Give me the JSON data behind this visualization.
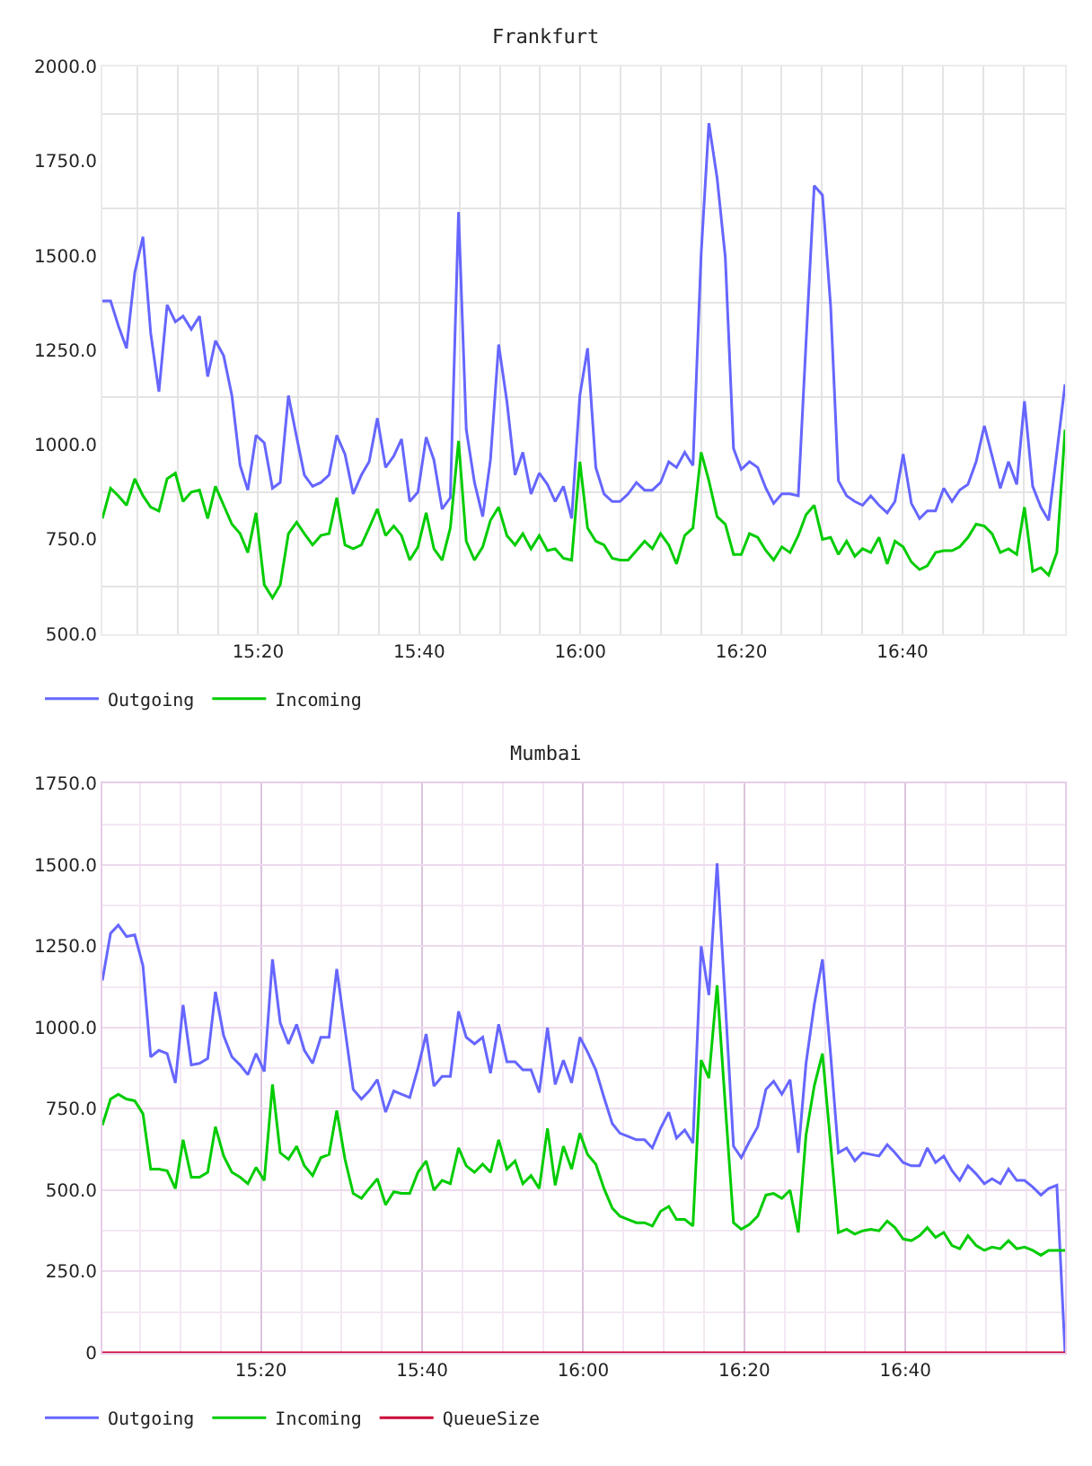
{
  "chart_data": [
    {
      "type": "line",
      "title": "Frankfurt",
      "grid": true,
      "legend": "bottom left",
      "x": [
        15.011,
        15.028,
        15.044,
        15.061,
        15.078,
        15.095,
        15.111,
        15.128,
        15.145,
        15.162,
        15.178,
        15.195,
        15.212,
        15.229,
        15.245,
        15.262,
        15.279,
        15.296,
        15.312,
        15.329,
        15.346,
        15.363,
        15.379,
        15.396,
        15.413,
        15.429,
        15.446,
        15.463,
        15.48,
        15.496,
        15.513,
        15.53,
        15.547,
        15.563,
        15.58,
        15.597,
        15.614,
        15.63,
        15.647,
        15.664,
        15.681,
        15.697,
        15.714,
        15.731,
        15.748,
        15.764,
        15.781,
        15.798,
        15.814,
        15.831,
        15.848,
        15.865,
        15.881,
        15.898,
        15.915,
        15.932,
        15.948,
        15.965,
        15.982,
        15.999,
        16.015,
        16.032,
        16.049,
        16.066,
        16.082,
        16.099,
        16.116,
        16.133,
        16.149,
        16.166,
        16.183,
        16.199,
        16.216,
        16.233,
        16.25,
        16.266,
        16.283,
        16.3,
        16.317,
        16.333,
        16.35,
        16.367,
        16.384,
        16.4,
        16.417,
        16.434,
        16.451,
        16.467,
        16.484,
        16.501,
        16.518,
        16.534,
        16.551,
        16.568,
        16.584,
        16.601,
        16.618,
        16.635,
        16.651,
        16.668,
        16.685,
        16.702,
        16.718,
        16.735,
        16.752,
        16.769,
        16.785,
        16.802,
        16.819,
        16.836,
        16.852,
        16.869,
        16.886,
        16.903,
        16.919,
        16.936,
        16.953,
        16.969,
        16.986,
        17.003
      ],
      "xlim": [
        15.011,
        17.003
      ],
      "xticks": [
        {
          "value": 15.0833,
          "label": null
        },
        {
          "value": 15.1667,
          "label": null
        },
        {
          "value": 15.25,
          "label": null
        },
        {
          "value": 15.3333,
          "label": "15:20"
        },
        {
          "value": 15.4167,
          "label": null
        },
        {
          "value": 15.5,
          "label": null
        },
        {
          "value": 15.5833,
          "label": null
        },
        {
          "value": 15.6667,
          "label": "15:40"
        },
        {
          "value": 15.75,
          "label": null
        },
        {
          "value": 15.8333,
          "label": null
        },
        {
          "value": 15.9167,
          "label": null
        },
        {
          "value": 16,
          "label": "16:00"
        },
        {
          "value": 16.0833,
          "label": null
        },
        {
          "value": 16.1667,
          "label": null
        },
        {
          "value": 16.25,
          "label": null
        },
        {
          "value": 16.3333,
          "label": "16:20"
        },
        {
          "value": 16.4167,
          "label": null
        },
        {
          "value": 16.5,
          "label": null
        },
        {
          "value": 16.5833,
          "label": null
        },
        {
          "value": 16.6667,
          "label": "16:40"
        },
        {
          "value": 16.75,
          "label": null
        },
        {
          "value": 16.8333,
          "label": null
        },
        {
          "value": 16.9167,
          "label": null
        }
      ],
      "ylim": [
        500,
        2000
      ],
      "yticks": [
        {
          "value": 500,
          "label": "500.0"
        },
        {
          "value": 625,
          "label": null
        },
        {
          "value": 750,
          "label": "750.0"
        },
        {
          "value": 875,
          "label": null
        },
        {
          "value": 1000,
          "label": "1000.0"
        },
        {
          "value": 1125,
          "label": null
        },
        {
          "value": 1250,
          "label": "1250.0"
        },
        {
          "value": 1375,
          "label": null
        },
        {
          "value": 1500,
          "label": "1500.0"
        },
        {
          "value": 1625,
          "label": null
        },
        {
          "value": 1750,
          "label": "1750.0"
        },
        {
          "value": 1875,
          "label": null
        },
        {
          "value": 2000,
          "label": "2000.0"
        }
      ],
      "series": [
        {
          "name": "Outgoing",
          "color": "#6666ff",
          "values": [
            1380,
            1380,
            1315,
            1255,
            1455,
            1550,
            1295,
            1140,
            1370,
            1325,
            1340,
            1305,
            1340,
            1180,
            1275,
            1235,
            1130,
            945,
            880,
            1025,
            1005,
            885,
            900,
            1130,
            1020,
            920,
            890,
            900,
            920,
            1025,
            975,
            870,
            920,
            955,
            1070,
            940,
            970,
            1015,
            850,
            875,
            1020,
            960,
            830,
            860,
            1615,
            1040,
            900,
            810,
            960,
            1265,
            1115,
            920,
            980,
            870,
            925,
            895,
            850,
            890,
            805,
            1130,
            1255,
            940,
            870,
            850,
            850,
            870,
            900,
            880,
            880,
            900,
            955,
            940,
            980,
            945,
            1505,
            1850,
            1705,
            1495,
            990,
            935,
            955,
            940,
            885,
            845,
            870,
            870,
            865,
            1270,
            1685,
            1660,
            1365,
            905,
            865,
            850,
            840,
            865,
            840,
            820,
            850,
            975,
            845,
            805,
            825,
            825,
            885,
            850,
            880,
            895,
            955,
            1050,
            970,
            885,
            955,
            895,
            1115,
            890,
            835,
            800,
            980,
            1160
          ]
        },
        {
          "name": "Incoming",
          "color": "#00cc00",
          "values": [
            805,
            885,
            865,
            840,
            910,
            865,
            835,
            825,
            910,
            925,
            850,
            875,
            880,
            805,
            890,
            840,
            790,
            765,
            715,
            820,
            630,
            595,
            630,
            765,
            795,
            765,
            735,
            760,
            765,
            860,
            735,
            725,
            735,
            780,
            830,
            760,
            785,
            760,
            695,
            730,
            820,
            725,
            695,
            780,
            1010,
            745,
            695,
            730,
            800,
            835,
            760,
            735,
            765,
            725,
            760,
            720,
            725,
            700,
            695,
            955,
            780,
            745,
            735,
            700,
            695,
            695,
            720,
            745,
            725,
            765,
            735,
            685,
            760,
            780,
            980,
            905,
            810,
            790,
            710,
            710,
            765,
            755,
            720,
            695,
            730,
            715,
            760,
            815,
            840,
            750,
            755,
            710,
            745,
            705,
            725,
            715,
            755,
            685,
            745,
            730,
            690,
            670,
            680,
            715,
            720,
            720,
            730,
            755,
            790,
            785,
            765,
            715,
            725,
            710,
            835,
            665,
            675,
            655,
            715,
            1040
          ]
        }
      ]
    },
    {
      "type": "line",
      "title": "Mumbai",
      "grid": true,
      "legend": "bottom left",
      "x": [
        15.005,
        15.022,
        15.038,
        15.055,
        15.072,
        15.089,
        15.105,
        15.122,
        15.139,
        15.156,
        15.172,
        15.189,
        15.206,
        15.223,
        15.239,
        15.256,
        15.273,
        15.29,
        15.306,
        15.323,
        15.34,
        15.357,
        15.373,
        15.39,
        15.407,
        15.423,
        15.44,
        15.457,
        15.474,
        15.49,
        15.507,
        15.524,
        15.541,
        15.557,
        15.574,
        15.591,
        15.608,
        15.624,
        15.641,
        15.658,
        15.675,
        15.691,
        15.708,
        15.725,
        15.742,
        15.758,
        15.775,
        15.792,
        15.808,
        15.825,
        15.842,
        15.859,
        15.875,
        15.892,
        15.909,
        15.926,
        15.942,
        15.959,
        15.976,
        15.993,
        16.009,
        16.026,
        16.043,
        16.06,
        16.076,
        16.093,
        16.11,
        16.127,
        16.143,
        16.16,
        16.177,
        16.193,
        16.21,
        16.227,
        16.244,
        16.26,
        16.277,
        16.294,
        16.311,
        16.327,
        16.344,
        16.361,
        16.378,
        16.394,
        16.411,
        16.428,
        16.445,
        16.461,
        16.478,
        16.495,
        16.512,
        16.528,
        16.545,
        16.562,
        16.578,
        16.595,
        16.612,
        16.629,
        16.645,
        16.662,
        16.679,
        16.696,
        16.712,
        16.729,
        16.746,
        16.763,
        16.779,
        16.796,
        16.813,
        16.83,
        16.846,
        16.863,
        16.88,
        16.897,
        16.913,
        16.93,
        16.947,
        16.963,
        16.98,
        16.997
      ],
      "xlim": [
        15.005,
        16.997
      ],
      "xticks": [
        {
          "value": 15.0833,
          "label": null
        },
        {
          "value": 15.1667,
          "label": null
        },
        {
          "value": 15.25,
          "label": null
        },
        {
          "value": 15.3333,
          "label": "15:20"
        },
        {
          "value": 15.4167,
          "label": null
        },
        {
          "value": 15.5,
          "label": null
        },
        {
          "value": 15.5833,
          "label": null
        },
        {
          "value": 15.6667,
          "label": "15:40"
        },
        {
          "value": 15.75,
          "label": null
        },
        {
          "value": 15.8333,
          "label": null
        },
        {
          "value": 15.9167,
          "label": null
        },
        {
          "value": 16,
          "label": "16:00"
        },
        {
          "value": 16.0833,
          "label": null
        },
        {
          "value": 16.1667,
          "label": null
        },
        {
          "value": 16.25,
          "label": null
        },
        {
          "value": 16.3333,
          "label": "16:20"
        },
        {
          "value": 16.4167,
          "label": null
        },
        {
          "value": 16.5,
          "label": null
        },
        {
          "value": 16.5833,
          "label": null
        },
        {
          "value": 16.6667,
          "label": "16:40"
        },
        {
          "value": 16.75,
          "label": null
        },
        {
          "value": 16.8333,
          "label": null
        },
        {
          "value": 16.9167,
          "label": null
        }
      ],
      "ylim": [
        0,
        1750
      ],
      "yticks": [
        0,
        {
          "value": 125,
          "label": null
        },
        {
          "value": 250,
          "label": "250.0"
        },
        {
          "value": 375,
          "label": null
        },
        {
          "value": 500,
          "label": "500.0"
        },
        {
          "value": 625,
          "label": null
        },
        {
          "value": 750,
          "label": "750.0"
        },
        {
          "value": 875,
          "label": null
        },
        {
          "value": 1000,
          "label": "1000.0"
        },
        {
          "value": 1125,
          "label": null
        },
        {
          "value": 1250,
          "label": "1250.0"
        },
        {
          "value": 1375,
          "label": null
        },
        {
          "value": 1500,
          "label": "1500.0"
        },
        {
          "value": 1625,
          "label": null
        },
        {
          "value": 1750,
          "label": "1750.0"
        }
      ],
      "series": [
        {
          "name": "Outgoing",
          "color": "#6666ff",
          "values": [
            1145,
            1290,
            1315,
            1280,
            1285,
            1190,
            910,
            930,
            920,
            830,
            1070,
            885,
            890,
            905,
            1110,
            975,
            910,
            885,
            855,
            920,
            865,
            1210,
            1015,
            950,
            1010,
            930,
            890,
            970,
            970,
            1180,
            995,
            810,
            780,
            805,
            840,
            740,
            805,
            795,
            785,
            875,
            980,
            820,
            850,
            850,
            1050,
            970,
            950,
            970,
            860,
            1010,
            895,
            895,
            870,
            870,
            800,
            1000,
            825,
            900,
            830,
            970,
            925,
            870,
            785,
            705,
            675,
            665,
            655,
            655,
            630,
            690,
            740,
            660,
            685,
            645,
            1250,
            1100,
            1505,
            1075,
            635,
            600,
            650,
            695,
            810,
            835,
            795,
            840,
            615,
            890,
            1070,
            1210,
            915,
            615,
            630,
            590,
            615,
            610,
            605,
            640,
            615,
            585,
            575,
            575,
            630,
            585,
            605,
            560,
            530,
            575,
            550,
            520,
            535,
            520,
            565,
            530,
            530,
            510,
            485,
            505,
            515,
            0
          ]
        },
        {
          "name": "Incoming",
          "color": "#00cc00",
          "values": [
            700,
            780,
            795,
            780,
            775,
            735,
            565,
            565,
            560,
            505,
            655,
            540,
            540,
            555,
            695,
            605,
            555,
            540,
            520,
            570,
            530,
            825,
            615,
            595,
            635,
            575,
            545,
            600,
            610,
            745,
            595,
            490,
            475,
            505,
            535,
            455,
            495,
            490,
            490,
            555,
            590,
            500,
            530,
            520,
            630,
            575,
            555,
            580,
            555,
            655,
            565,
            590,
            520,
            545,
            505,
            690,
            515,
            635,
            565,
            675,
            610,
            580,
            505,
            445,
            420,
            410,
            400,
            400,
            390,
            435,
            450,
            410,
            410,
            390,
            900,
            845,
            1130,
            760,
            400,
            380,
            395,
            420,
            485,
            490,
            475,
            500,
            370,
            670,
            820,
            920,
            640,
            370,
            380,
            365,
            375,
            380,
            375,
            405,
            385,
            350,
            345,
            360,
            385,
            355,
            370,
            330,
            320,
            360,
            330,
            315,
            325,
            320,
            345,
            320,
            325,
            315,
            300,
            315,
            315,
            315
          ]
        },
        {
          "name": "QueueSize",
          "color": "#cc0033",
          "x": [
            15.005,
            16.997
          ],
          "values": [
            0,
            0
          ]
        }
      ]
    }
  ]
}
